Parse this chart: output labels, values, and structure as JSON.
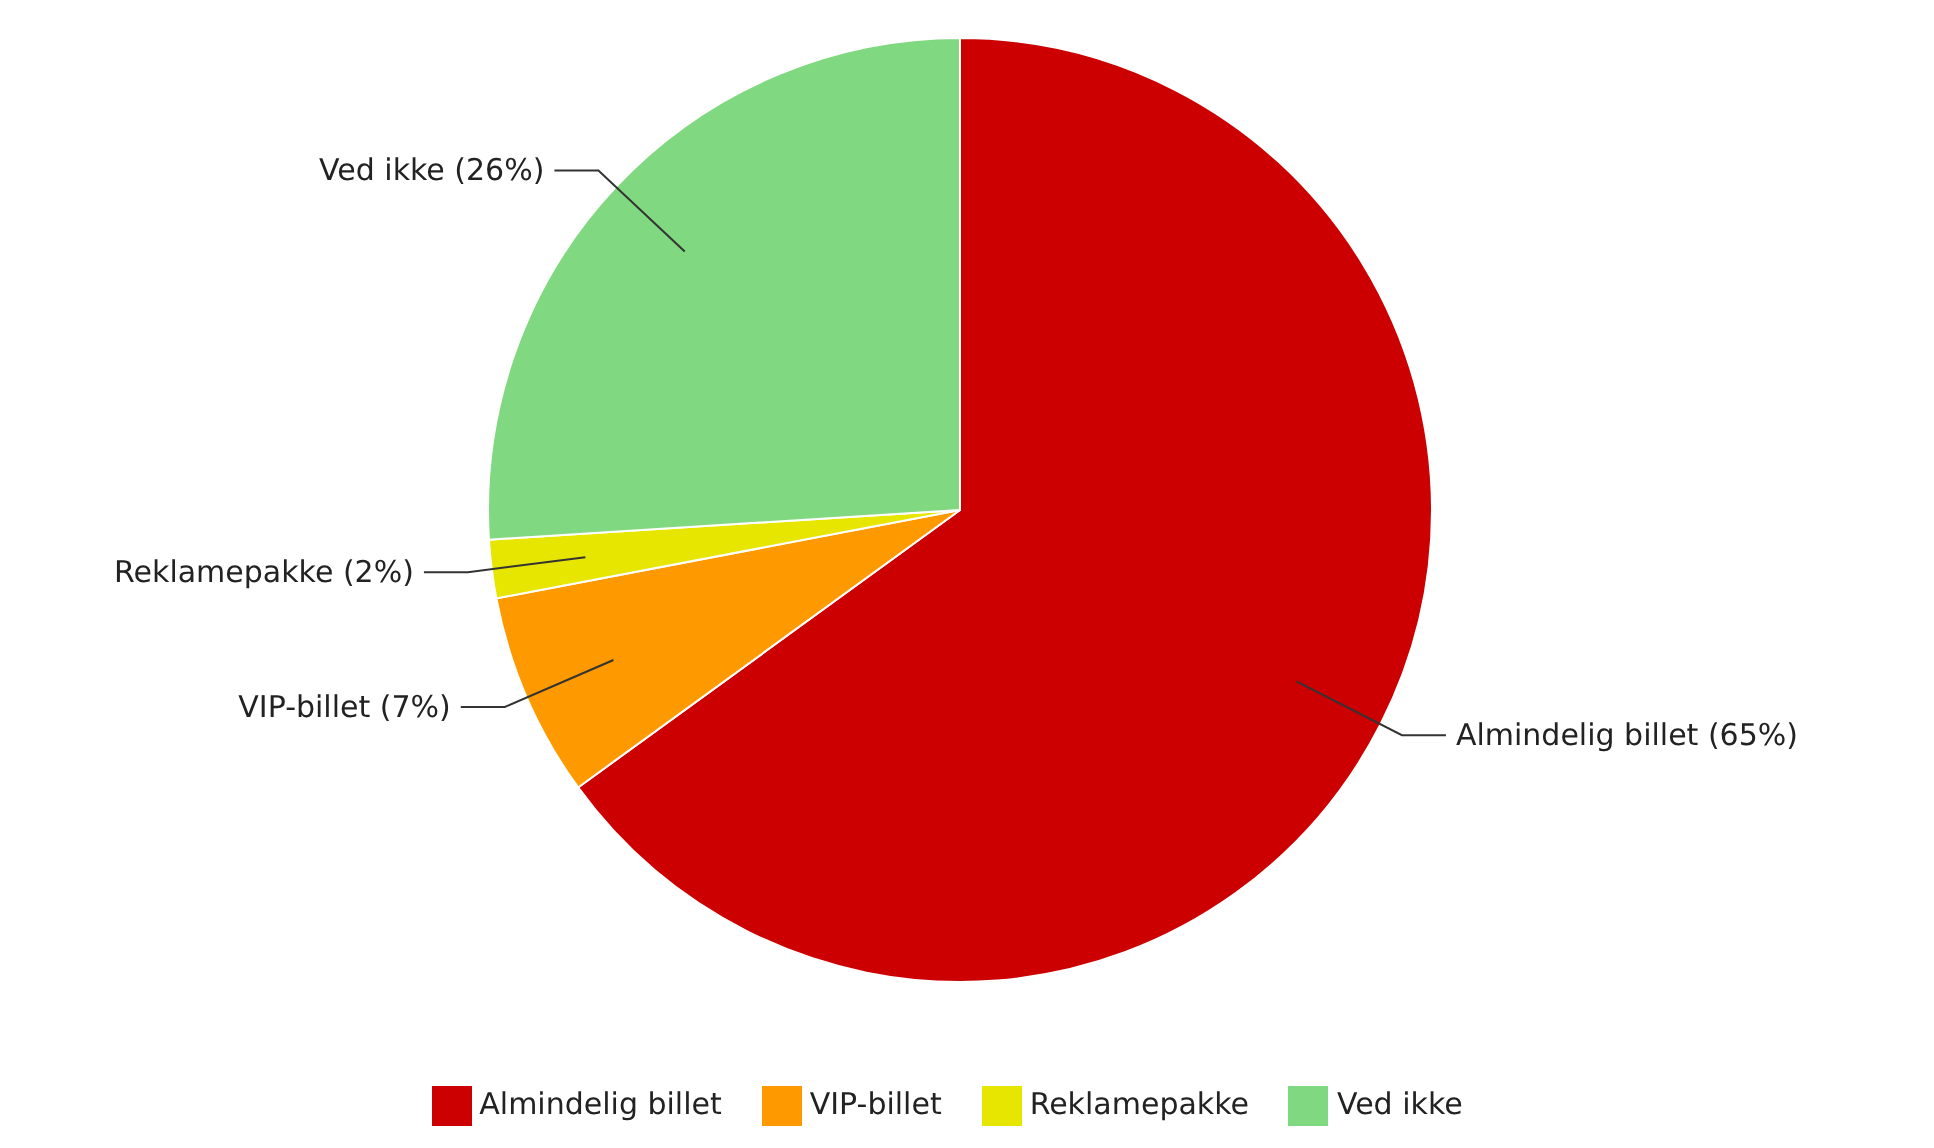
{
  "chart_data": {
    "type": "pie",
    "categories": [
      "Almindelig billet",
      "VIP-billet",
      "Reklamepakke",
      "Ved ikke"
    ],
    "values": [
      65,
      7,
      2,
      26
    ],
    "colors": [
      "#cc0000",
      "#ff9900",
      "#e6e600",
      "#80d980"
    ],
    "value_labels": [
      "(65%)",
      "(7%)",
      "(2%)",
      "(26%)"
    ],
    "legend": "bottom"
  }
}
